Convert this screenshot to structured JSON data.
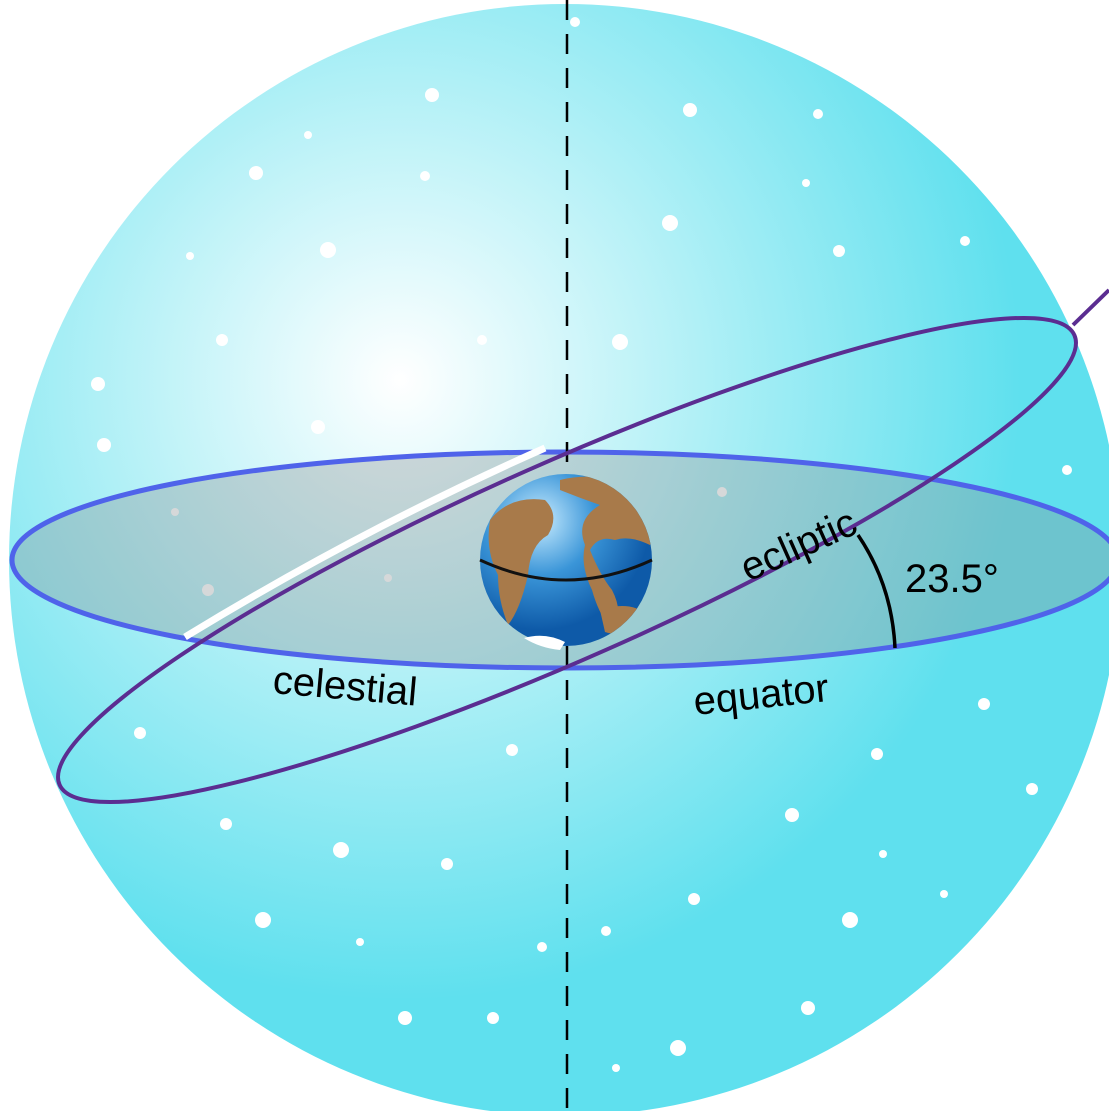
{
  "labels": {
    "celestial": "celestial",
    "equator": "equator",
    "ecliptic": "ecliptic",
    "angle": "23.5°"
  }
}
